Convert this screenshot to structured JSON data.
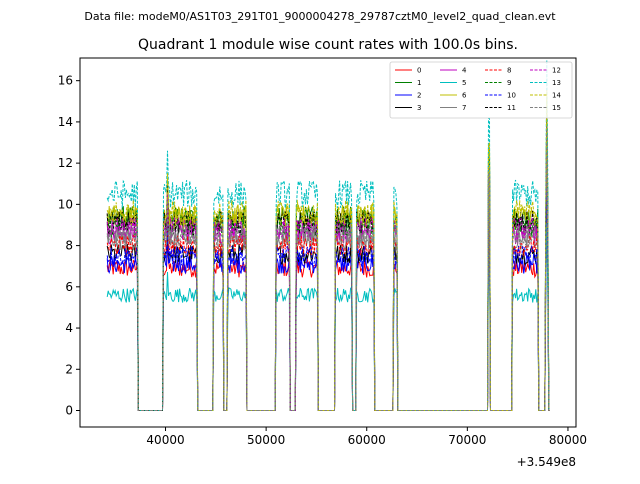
{
  "suptitle": "Data file: modeM0/AS1T03_291T01_9000004278_29787cztM0_level2_quad_clean.evt",
  "chart_data": {
    "type": "line",
    "title": "Quadrant 1 module wise count rates with 100.0s bins.",
    "xlabel": "",
    "ylabel": "",
    "x_offset_label": "+3.549e8",
    "xlim": [
      31500,
      80800
    ],
    "ylim": [
      -0.8,
      17.1
    ],
    "xticks": [
      40000,
      50000,
      60000,
      70000,
      80000
    ],
    "xtick_labels": [
      "40000",
      "50000",
      "60000",
      "70000",
      "80000"
    ],
    "yticks": [
      0,
      2,
      4,
      6,
      8,
      10,
      12,
      14,
      16
    ],
    "ytick_labels": [
      "0",
      "2",
      "4",
      "6",
      "8",
      "10",
      "12",
      "14",
      "16"
    ],
    "legend_position": "top-right",
    "legend_columns": 4,
    "series": [
      {
        "name": "0",
        "color": "#ff0000",
        "style": "solid",
        "mean": 6.9
      },
      {
        "name": "1",
        "color": "#008000",
        "style": "solid",
        "mean": 9.3
      },
      {
        "name": "2",
        "color": "#0000ff",
        "style": "solid",
        "mean": 7.1
      },
      {
        "name": "3",
        "color": "#000000",
        "style": "solid",
        "mean": 7.6
      },
      {
        "name": "4",
        "color": "#bf00bf",
        "style": "solid",
        "mean": 8.6
      },
      {
        "name": "5",
        "color": "#00bfbf",
        "style": "solid",
        "mean": 5.6
      },
      {
        "name": "6",
        "color": "#bfbf00",
        "style": "solid",
        "mean": 9.4
      },
      {
        "name": "7",
        "color": "#808080",
        "style": "solid",
        "mean": 8.3
      },
      {
        "name": "8",
        "color": "#ff0000",
        "style": "dashed",
        "mean": 8.0
      },
      {
        "name": "9",
        "color": "#008000",
        "style": "dashed",
        "mean": 9.0
      },
      {
        "name": "10",
        "color": "#0000ff",
        "style": "dashed",
        "mean": 7.5
      },
      {
        "name": "11",
        "color": "#000000",
        "style": "dashed",
        "mean": 9.1
      },
      {
        "name": "12",
        "color": "#bf00bf",
        "style": "dashed",
        "mean": 8.8
      },
      {
        "name": "13",
        "color": "#00bfbf",
        "style": "dashed",
        "mean": 10.5
      },
      {
        "name": "14",
        "color": "#bfbf00",
        "style": "dashed",
        "mean": 9.6
      },
      {
        "name": "15",
        "color": "#808080",
        "style": "dashed",
        "mean": 8.5
      }
    ],
    "active_segments": [
      [
        34200,
        37200
      ],
      [
        39800,
        43100
      ],
      [
        44800,
        45700
      ],
      [
        46200,
        48000
      ],
      [
        51000,
        52300
      ],
      [
        53000,
        55100
      ],
      [
        56900,
        58500
      ],
      [
        59000,
        60700
      ],
      [
        62700,
        63000
      ],
      [
        72100,
        72200
      ],
      [
        74500,
        77000
      ],
      [
        77800,
        78000
      ]
    ],
    "spikes": [
      {
        "x": 40200,
        "factor": 1.2
      },
      {
        "x": 72150,
        "factor": 1.35
      },
      {
        "x": 77900,
        "factor": 1.62
      }
    ]
  }
}
